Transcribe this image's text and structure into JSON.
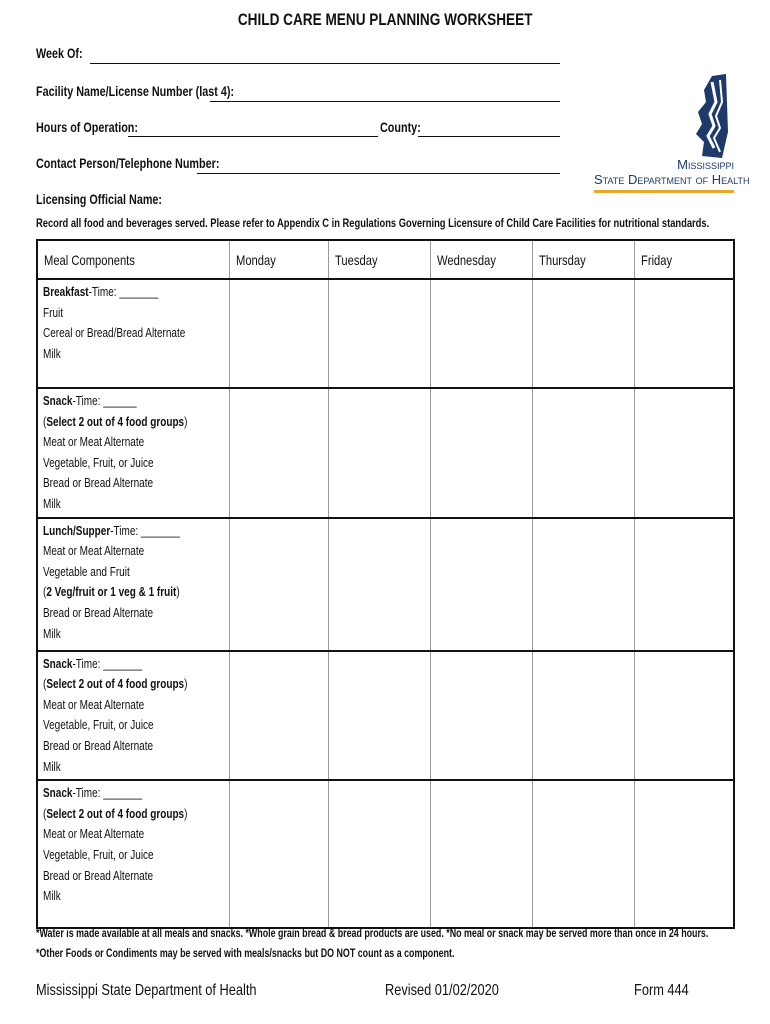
{
  "title": "CHILD CARE MENU PLANNING WORKSHEET",
  "fields": {
    "week_of": "Week Of:",
    "facility": "Facility Name/License Number (last 4):",
    "hours": "Hours of Operation:",
    "county": "County:",
    "contact": "Contact Person/Telephone Number:",
    "licensing": "Licensing Official Name:"
  },
  "logo": {
    "line1": "Mississippi",
    "line2": "State Department of Health",
    "colors": {
      "navy": "#1d3a6b",
      "gold": "#e8a92a"
    }
  },
  "instruction": "Record all food and beverages served. Please refer to Appendix C in Regulations Governing Licensure of Child Care Facilities for nutritional standards.",
  "table": {
    "headers": [
      "Meal Components",
      "Monday",
      "Tuesday",
      "Wednesday",
      "Thursday",
      "Friday"
    ],
    "rows": [
      {
        "lines": [
          [
            {
              "b": "Breakfast"
            },
            {
              "t": "-Time: _______"
            }
          ],
          [
            {
              "t": "Fruit"
            }
          ],
          [
            {
              "t": "Cereal or Bread/Bread Alternate"
            }
          ],
          [
            {
              "t": "Milk"
            }
          ]
        ]
      },
      {
        "lines": [
          [
            {
              "b": "Snack"
            },
            {
              "t": "-Time: ______"
            }
          ],
          [
            {
              "t": "("
            },
            {
              "b": "Select 2 out of 4 food groups"
            },
            {
              "t": ")"
            }
          ],
          [
            {
              "t": "Meat or Meat Alternate"
            }
          ],
          [
            {
              "t": "Vegetable, Fruit, or Juice"
            }
          ],
          [
            {
              "t": "Bread or Bread Alternate"
            }
          ],
          [
            {
              "t": "Milk"
            }
          ]
        ]
      },
      {
        "lines": [
          [
            {
              "b": "Lunch/Supper"
            },
            {
              "t": "-Time: _______"
            }
          ],
          [
            {
              "t": "Meat or Meat Alternate"
            }
          ],
          [
            {
              "t": "Vegetable and Fruit"
            }
          ],
          [
            {
              "t": "("
            },
            {
              "b": "2 Veg/fruit or 1 veg & 1 fruit"
            },
            {
              "t": ")"
            }
          ],
          [
            {
              "t": "Bread or Bread Alternate"
            }
          ],
          [
            {
              "t": "Milk"
            }
          ]
        ]
      },
      {
        "lines": [
          [
            {
              "b": "Snack"
            },
            {
              "t": "-Time: _______"
            }
          ],
          [
            {
              "t": "("
            },
            {
              "b": "Select 2 out of 4 food groups"
            },
            {
              "t": ")"
            }
          ],
          [
            {
              "t": "Meat or Meat Alternate"
            }
          ],
          [
            {
              "t": "Vegetable, Fruit, or Juice"
            }
          ],
          [
            {
              "t": "Bread or Bread Alternate"
            }
          ],
          [
            {
              "t": "Milk"
            }
          ]
        ]
      },
      {
        "lines": [
          [
            {
              "b": "Snack"
            },
            {
              "t": "-Time: _______"
            }
          ],
          [
            {
              "t": "("
            },
            {
              "b": "Select 2 out of 4 food groups"
            },
            {
              "t": ")"
            }
          ],
          [
            {
              "t": "Meat or Meat Alternate"
            }
          ],
          [
            {
              "t": "Vegetable, Fruit, or Juice"
            }
          ],
          [
            {
              "t": "Bread or Bread Alternate"
            }
          ],
          [
            {
              "t": "Milk"
            }
          ]
        ]
      }
    ]
  },
  "notes": [
    "*Water is made available at all meals and snacks. *Whole grain bread & bread products are used. *No meal or snack may be served more than once in 24 hours.",
    "*Other Foods or Condiments may be served with meals/snacks but DO NOT count as a component."
  ],
  "footer": {
    "org": "Mississippi State Department of Health",
    "revised": "Revised 01/02/2020",
    "form": "Form 444"
  }
}
